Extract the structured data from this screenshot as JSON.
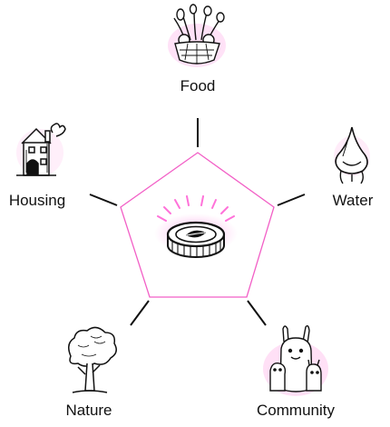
{
  "diagram": {
    "center": {
      "icon": "coin-icon"
    },
    "nodes": [
      {
        "id": "food",
        "label": "Food",
        "icon": "food-bowl-icon"
      },
      {
        "id": "water",
        "label": "Water",
        "icon": "water-drop-icon"
      },
      {
        "id": "housing",
        "label": "Housing",
        "icon": "house-icon"
      },
      {
        "id": "nature",
        "label": "Nature",
        "icon": "tree-icon"
      },
      {
        "id": "community",
        "label": "Community",
        "icon": "community-creatures-icon"
      }
    ],
    "colors": {
      "pentagon_stroke": "#f25fc6",
      "glow": "#ff4fd0",
      "line": "#111111"
    }
  }
}
